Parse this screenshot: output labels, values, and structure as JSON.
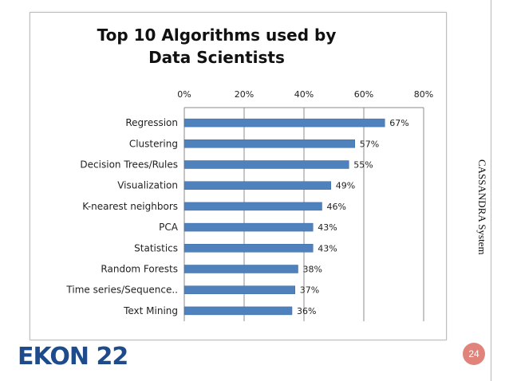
{
  "slide": {
    "side_label": "CASSANDRA System",
    "brand": "EKON 22",
    "page_number": "24",
    "accent_color": "#e0837a",
    "brand_color": "#1d4b8c"
  },
  "chart_data": {
    "type": "bar",
    "orientation": "horizontal",
    "title": "Top 10 Algorithms used by Data Scientists",
    "title_lines": [
      "Top 10 Algorithms used by",
      "Data Scientists"
    ],
    "categories": [
      "Regression",
      "Clustering",
      "Decision Trees/Rules",
      "Visualization",
      "K-nearest neighbors",
      "PCA",
      "Statistics",
      "Random Forests",
      "Time series/Sequence..",
      "Text Mining"
    ],
    "values": [
      67,
      57,
      55,
      49,
      46,
      43,
      43,
      38,
      37,
      36
    ],
    "value_labels": [
      "67%",
      "57%",
      "55%",
      "49%",
      "46%",
      "43%",
      "43%",
      "38%",
      "37%",
      "36%"
    ],
    "xlim": [
      0,
      80
    ],
    "xticks": [
      "0%",
      "20%",
      "40%",
      "60%",
      "80%"
    ],
    "xtick_values": [
      0,
      20,
      40,
      60,
      80
    ],
    "axis_position": "top",
    "grid": true,
    "bar_color": "#4f81bd"
  }
}
